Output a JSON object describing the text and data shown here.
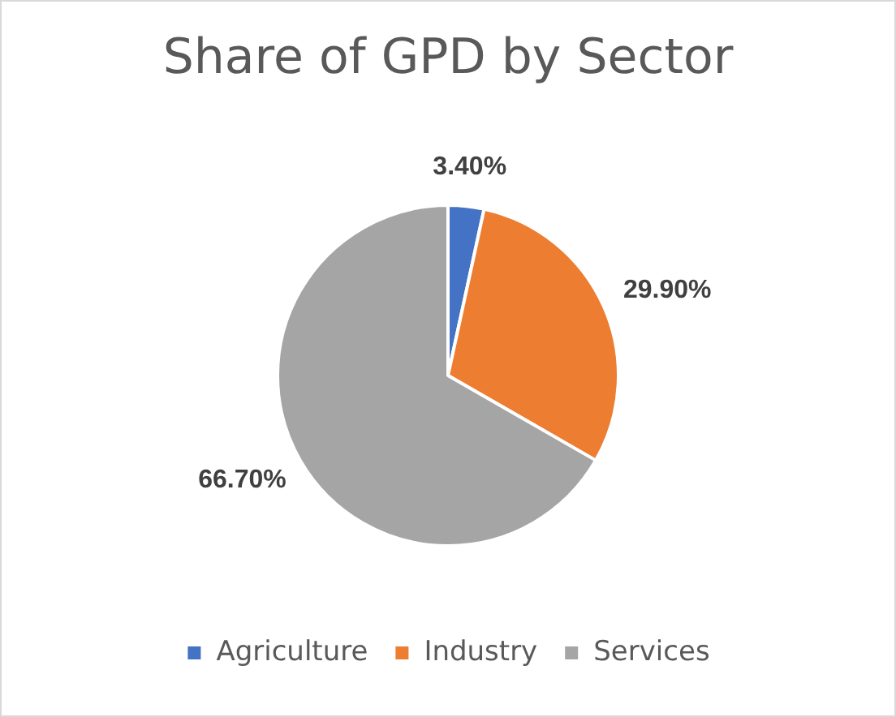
{
  "chart_data": {
    "type": "pie",
    "title": "Share of GPD by Sector",
    "categories": [
      "Agriculture",
      "Industry",
      "Services"
    ],
    "values": [
      3.4,
      29.9,
      66.7
    ],
    "colors": [
      "#4472c4",
      "#ed7d31",
      "#a5a5a5"
    ],
    "value_labels": [
      "3.40%",
      "29.90%",
      "66.70%"
    ],
    "legend": "bottom"
  }
}
